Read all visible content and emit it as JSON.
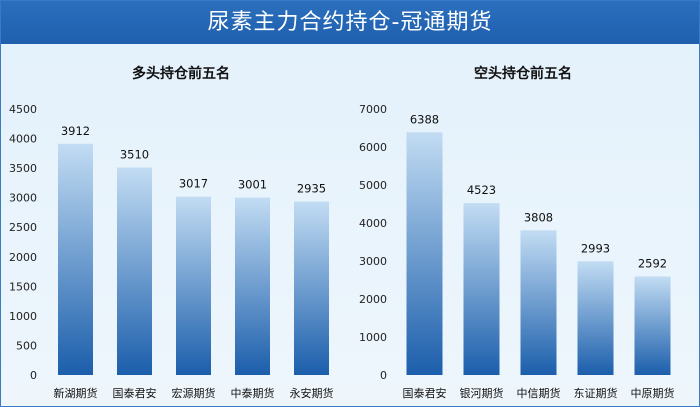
{
  "page_title": "尿素主力合约持仓-冠通期货",
  "colors": {
    "banner": "#2a6fbd",
    "bar_top": "#c2dcf3",
    "bar_bottom": "#1b5eab",
    "panel_bg": "#e3f1fb"
  },
  "chart_data": [
    {
      "type": "bar",
      "title": "多头持仓前五名",
      "categories": [
        "新湖期货",
        "国泰君安",
        "宏源期货",
        "中泰期货",
        "永安期货"
      ],
      "values": [
        3912,
        3510,
        3017,
        3001,
        2935
      ],
      "ylim": [
        0,
        4500
      ],
      "yticks": [
        0,
        500,
        1000,
        1500,
        2000,
        2500,
        3000,
        3500,
        4000,
        4500
      ],
      "grid": false
    },
    {
      "type": "bar",
      "title": "空头持仓前五名",
      "categories": [
        "国泰君安",
        "银河期货",
        "中信期货",
        "东证期货",
        "中原期货"
      ],
      "values": [
        6388,
        4523,
        3808,
        2993,
        2592
      ],
      "ylim": [
        0,
        7000
      ],
      "yticks": [
        0,
        1000,
        2000,
        3000,
        4000,
        5000,
        6000,
        7000
      ],
      "grid": false
    }
  ]
}
